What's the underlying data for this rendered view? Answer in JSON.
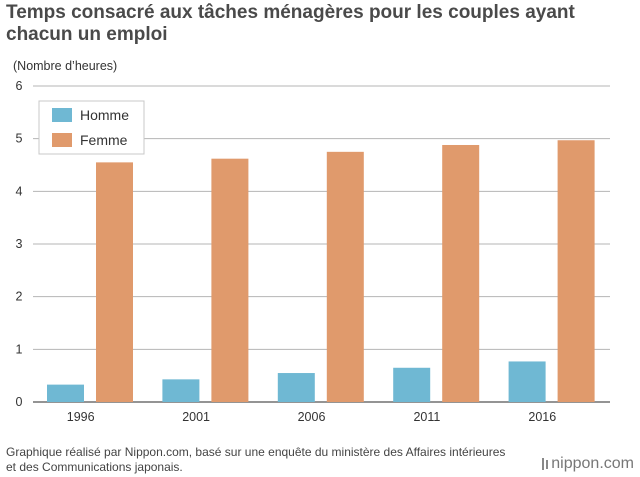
{
  "chart_data": {
    "type": "bar",
    "title": "Temps consacré aux tâches ménagères pour les couples ayant chacun un emploi",
    "ylabel": "(Nombre d’heures)",
    "xlabel": "",
    "categories": [
      "1996",
      "2001",
      "2006",
      "2011",
      "2016"
    ],
    "series": [
      {
        "name": "Homme",
        "color": "#6fb8d3",
        "values": [
          0.33,
          0.43,
          0.55,
          0.65,
          0.77
        ]
      },
      {
        "name": "Femme",
        "color": "#e09a6c",
        "values": [
          4.55,
          4.62,
          4.75,
          4.88,
          4.97
        ]
      }
    ],
    "ylim": [
      0,
      6
    ],
    "yticks": [
      "0",
      "1",
      "2",
      "3",
      "4",
      "5",
      "6"
    ],
    "grid": true,
    "legend": "top-left"
  },
  "footer": {
    "source": "Graphique réalisé par Nippon.com, basé sur une enquête du ministère des Affaires intérieures et des Communications japonais.",
    "brand": "nippon.com"
  }
}
